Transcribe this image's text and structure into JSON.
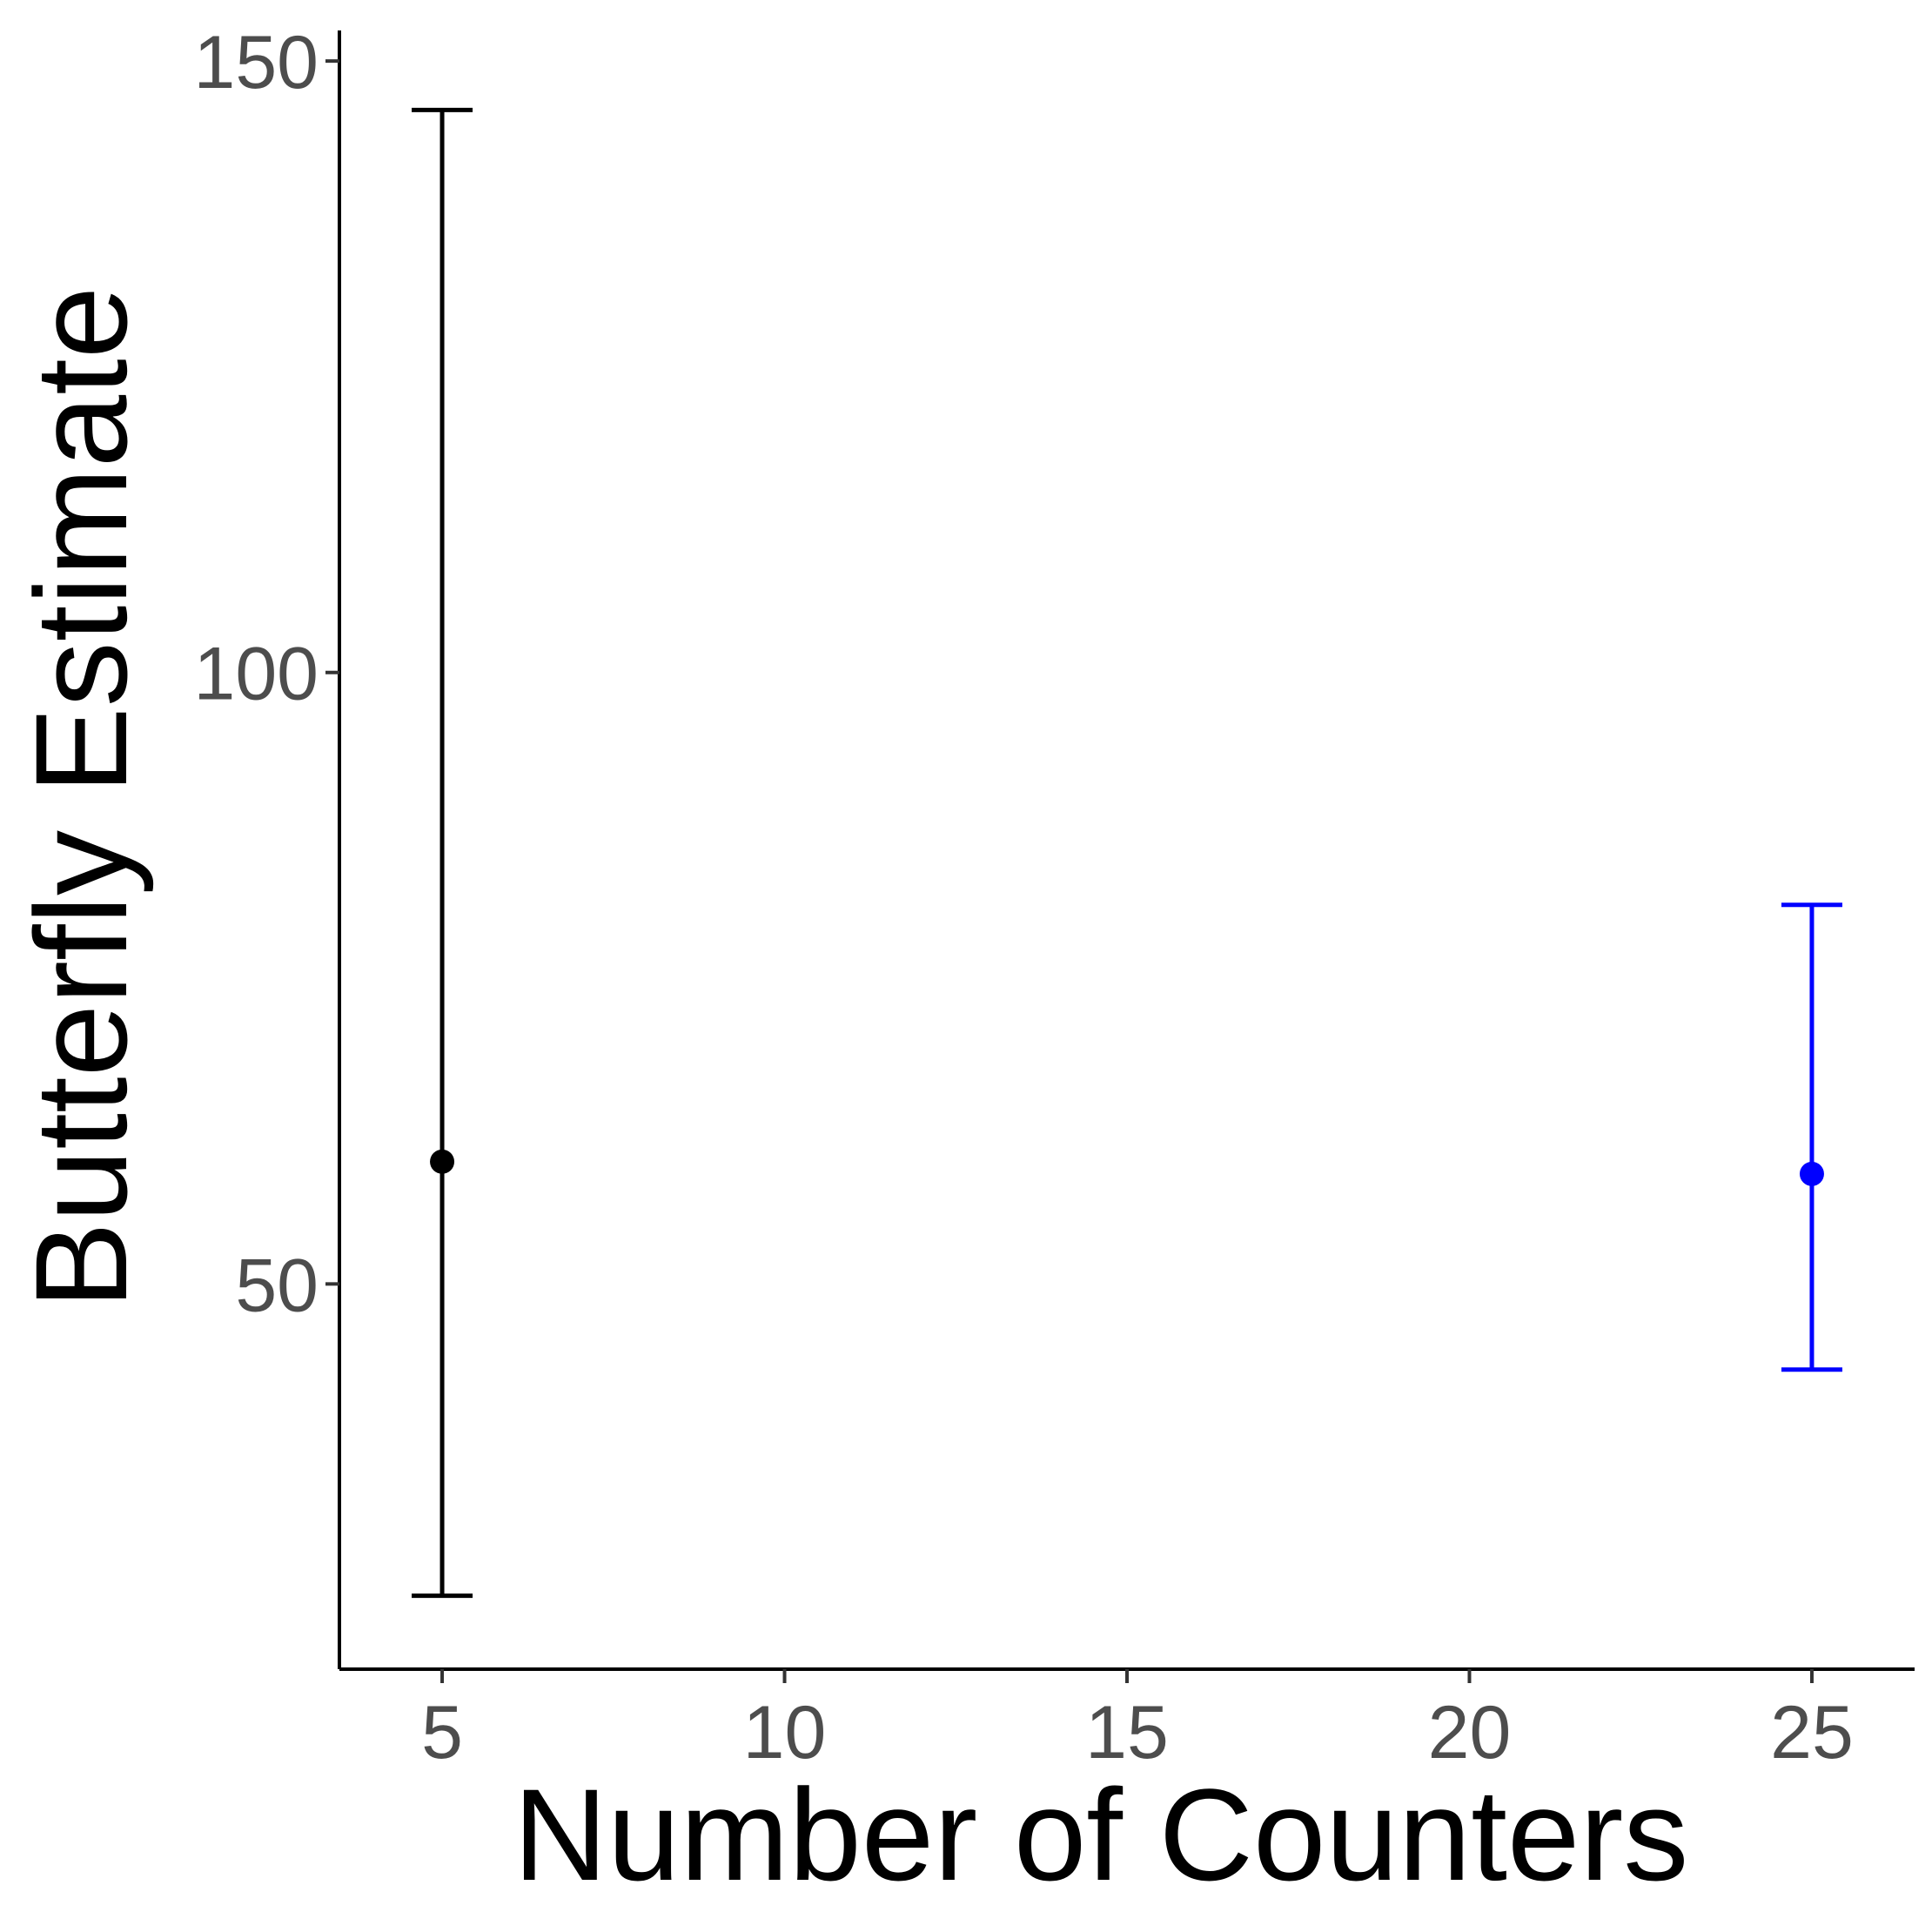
{
  "chart_data": {
    "type": "scatter",
    "title": "",
    "xlabel": "Number of Counters",
    "ylabel": "Butterfly Estimate",
    "xlim": [
      3.5,
      26.5
    ],
    "ylim": [
      18.5,
      152.5
    ],
    "x_ticks": [
      {
        "value": 5,
        "label": "5"
      },
      {
        "value": 10,
        "label": "10"
      },
      {
        "value": 15,
        "label": "15"
      },
      {
        "value": 20,
        "label": "20"
      },
      {
        "value": 25,
        "label": "25"
      }
    ],
    "y_ticks": [
      {
        "value": 50,
        "label": "50"
      },
      {
        "value": 100,
        "label": "100"
      },
      {
        "value": 150,
        "label": "150"
      }
    ],
    "grid": false,
    "legend": "none",
    "series": [
      {
        "color": "#000000",
        "points": [
          {
            "x": 5,
            "y": 60.0,
            "lower": 24.5,
            "upper": 146.0
          }
        ]
      },
      {
        "color": "#0000ff",
        "points": [
          {
            "x": 25,
            "y": 59.0,
            "lower": 43.0,
            "upper": 81.0
          }
        ]
      }
    ]
  }
}
